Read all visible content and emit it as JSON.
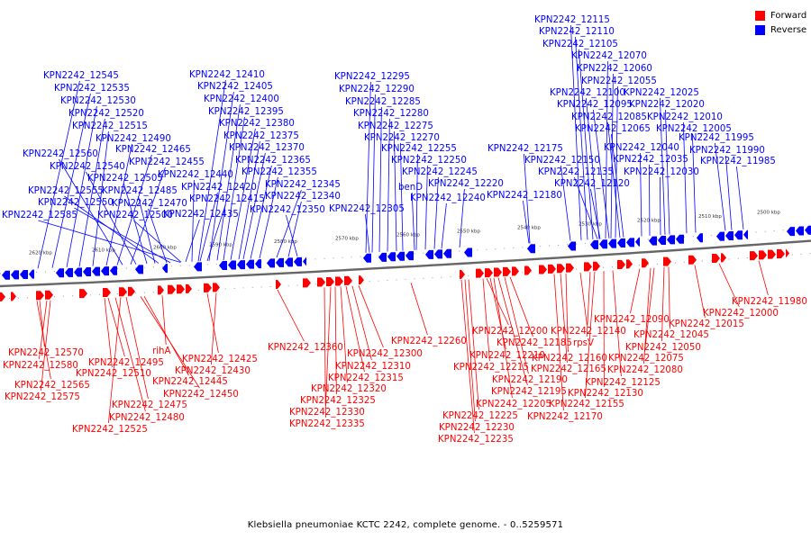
{
  "colors": {
    "forward": "#ff0000",
    "reverse": "#0000ff",
    "axis": "#555555"
  },
  "legend": {
    "forward_label": "Forward",
    "reverse_label": "Reverse"
  },
  "caption": "Klebsiella pneumoniae KCTC 2242, complete genome. - 0..5259571",
  "ticks": [
    "2620 kbp",
    "2610 kbp",
    "2600 kbp",
    "2590 kbp",
    "2580 kbp",
    "2570 kbp",
    "2560 kbp",
    "2550 kbp",
    "2540 kbp",
    "2530 kbp",
    "2520 kbp",
    "2510 kbp",
    "2500 kbp"
  ],
  "reverse_genes": [
    "KPN2242_12545",
    "KPN2242_12535",
    "KPN2242_12530",
    "KPN2242_12520",
    "KPN2242_12515",
    "KPN2242_12490",
    "KPN2242_12465",
    "KPN2242_12560",
    "KPN2242_12455",
    "KPN2242_12540",
    "KPN2242_12505",
    "KPN2242_12555",
    "KPN2242_12485",
    "KPN2242_12550",
    "KPN2242_12470",
    "KPN2242_12585",
    "KPN2242_12500",
    "KPN2242_12410",
    "KPN2242_12405",
    "KPN2242_12400",
    "KPN2242_12395",
    "KPN2242_12380",
    "KPN2242_12375",
    "KPN2242_12370",
    "KPN2242_12365",
    "KPN2242_12440",
    "KPN2242_12355",
    "KPN2242_12420",
    "KPN2242_12345",
    "KPN2242_12415",
    "KPN2242_12340",
    "KPN2242_12435",
    "KPN2242_12350",
    "KPN2242_12295",
    "KPN2242_12290",
    "KPN2242_12285",
    "KPN2242_12280",
    "KPN2242_12275",
    "KPN2242_12270",
    "KPN2242_12255",
    "KPN2242_12250",
    "KPN2242_12245",
    "benD",
    "KPN2242_12220",
    "KPN2242_12240",
    "KPN2242_12305",
    "KPN2242_12175",
    "KPN2242_12150",
    "KPN2242_12180",
    "KPN2242_12115",
    "KPN2242_12110",
    "KPN2242_12105",
    "KPN2242_12070",
    "KPN2242_12060",
    "KPN2242_12055",
    "KPN2242_12100",
    "KPN2242_12025",
    "KPN2242_12095",
    "KPN2242_12020",
    "KPN2242_12085",
    "KPN2242_12010",
    "KPN2242_12065",
    "KPN2242_12005",
    "KPN2242_12040",
    "KPN2242_11995",
    "KPN2242_11990",
    "KPN2242_12035",
    "KPN2242_11985",
    "KPN2242_12135",
    "KPN2242_12030",
    "KPN2242_12120"
  ],
  "forward_genes": [
    "KPN2242_12570",
    "KPN2242_12580",
    "KPN2242_12565",
    "KPN2242_12575",
    "KPN2242_12495",
    "KPN2242_12510",
    "rihA",
    "KPN2242_12425",
    "KPN2242_12430",
    "KPN2242_12445",
    "KPN2242_12450",
    "KPN2242_12475",
    "KPN2242_12480",
    "KPN2242_12525",
    "KPN2242_12360",
    "KPN2242_12300",
    "KPN2242_12310",
    "KPN2242_12315",
    "KPN2242_12320",
    "KPN2242_12325",
    "KPN2242_12330",
    "KPN2242_12335",
    "KPN2242_12260",
    "KPN2242_12200",
    "KPN2242_12185",
    "KPN2242_12210",
    "KPN2242_12215",
    "KPN2242_12190",
    "KPN2242_12195",
    "KPN2242_12205",
    "KPN2242_12225",
    "KPN2242_12230",
    "KPN2242_12235",
    "KPN2242_12140",
    "rpsV",
    "KPN2242_12160",
    "KPN2242_12165",
    "KPN2242_12125",
    "KPN2242_12130",
    "KPN2242_12155",
    "KPN2242_12170",
    "KPN2242_12090",
    "KPN2242_12045",
    "KPN2242_12050",
    "KPN2242_12075",
    "KPN2242_12080",
    "KPN2242_12015",
    "KPN2242_12000",
    "KPN2242_11980"
  ]
}
